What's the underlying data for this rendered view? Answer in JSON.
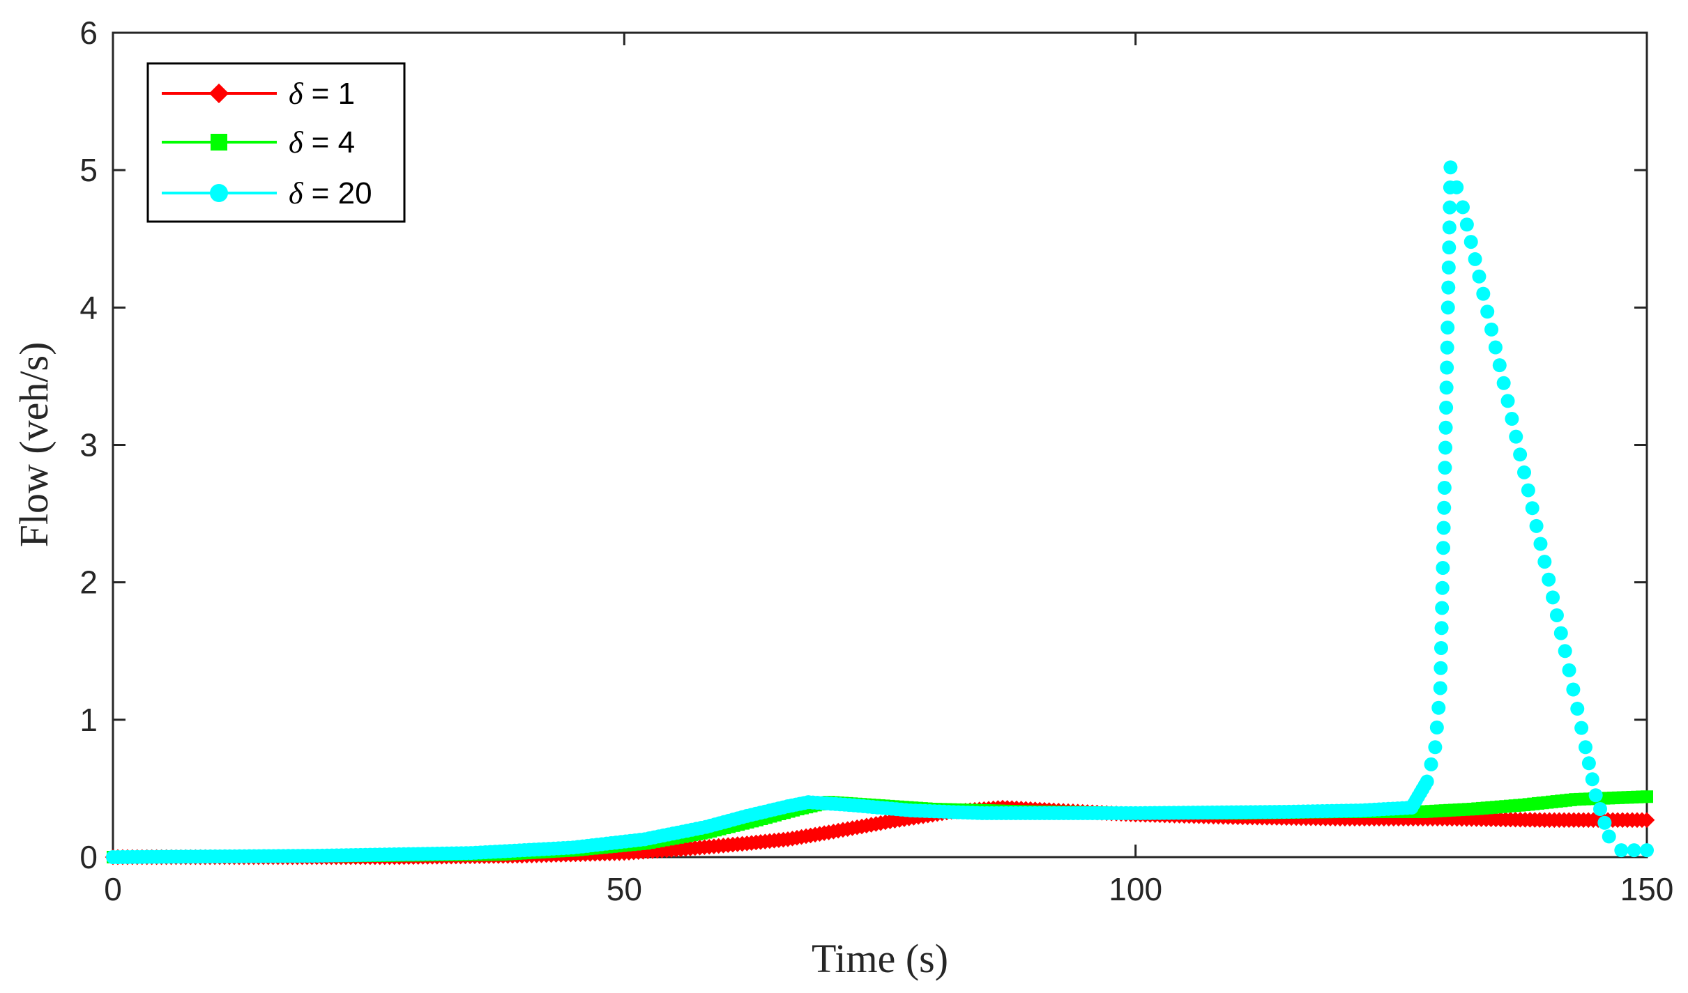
{
  "chart_data": {
    "type": "scatter",
    "xlabel": "Time (s)",
    "ylabel": "Flow (veh/s)",
    "xlim": [
      0,
      150
    ],
    "ylim": [
      0,
      6
    ],
    "xticks": [
      "0",
      "50",
      "100",
      "150"
    ],
    "yticks": [
      "0",
      "1",
      "2",
      "3",
      "4",
      "5",
      "6"
    ],
    "grid": false,
    "legend_position": "top-left",
    "series": [
      {
        "name": "δ = 1",
        "legend_symbol": "δ",
        "legend_value": " = 1",
        "color": "#ff0000",
        "marker": "diamond",
        "points": [
          [
            0,
            0
          ],
          [
            28,
            0
          ],
          [
            40,
            0.01
          ],
          [
            50,
            0.03
          ],
          [
            56,
            0.06
          ],
          [
            62,
            0.1
          ],
          [
            66,
            0.13
          ],
          [
            70,
            0.18
          ],
          [
            76,
            0.26
          ],
          [
            82,
            0.33
          ],
          [
            87,
            0.36
          ],
          [
            92,
            0.34
          ],
          [
            100,
            0.31
          ],
          [
            110,
            0.29
          ],
          [
            120,
            0.28
          ],
          [
            130,
            0.28
          ],
          [
            140,
            0.27
          ],
          [
            150,
            0.27
          ]
        ]
      },
      {
        "name": "δ = 4",
        "legend_symbol": "δ",
        "legend_value": " = 4",
        "color": "#00ff00",
        "marker": "square",
        "points": [
          [
            0,
            0
          ],
          [
            25,
            0.01
          ],
          [
            38,
            0.02
          ],
          [
            45,
            0.05
          ],
          [
            52,
            0.1
          ],
          [
            58,
            0.18
          ],
          [
            63,
            0.27
          ],
          [
            67,
            0.35
          ],
          [
            70,
            0.4
          ],
          [
            74,
            0.38
          ],
          [
            80,
            0.35
          ],
          [
            90,
            0.33
          ],
          [
            100,
            0.32
          ],
          [
            110,
            0.32
          ],
          [
            120,
            0.33
          ],
          [
            128,
            0.33
          ],
          [
            133,
            0.35
          ],
          [
            138,
            0.38
          ],
          [
            143,
            0.42
          ],
          [
            150,
            0.44
          ]
        ]
      },
      {
        "name": "δ = 20",
        "legend_symbol": "δ",
        "legend_value": " = 20",
        "color": "#00ffff",
        "marker": "circle",
        "points": [
          [
            0,
            0
          ],
          [
            20,
            0.01
          ],
          [
            35,
            0.03
          ],
          [
            45,
            0.07
          ],
          [
            52,
            0.13
          ],
          [
            58,
            0.22
          ],
          [
            62,
            0.3
          ],
          [
            66,
            0.37
          ],
          [
            68,
            0.4
          ],
          [
            72,
            0.38
          ],
          [
            78,
            0.34
          ],
          [
            85,
            0.32
          ],
          [
            100,
            0.32
          ],
          [
            115,
            0.33
          ],
          [
            122,
            0.34
          ],
          [
            127,
            0.36
          ],
          [
            128.5,
            0.55
          ],
          [
            129.3,
            0.8
          ],
          [
            129.8,
            1.23
          ],
          [
            130.3,
            2.98
          ],
          [
            130.8,
            5.02
          ],
          [
            132,
            4.73
          ],
          [
            134,
            4.1
          ],
          [
            136,
            3.45
          ],
          [
            138,
            2.8
          ],
          [
            140,
            2.15
          ],
          [
            142,
            1.5
          ],
          [
            144,
            0.8
          ],
          [
            145,
            0.45
          ],
          [
            146.3,
            0.15
          ],
          [
            147.5,
            0.05
          ],
          [
            150,
            0.05
          ]
        ]
      }
    ]
  }
}
